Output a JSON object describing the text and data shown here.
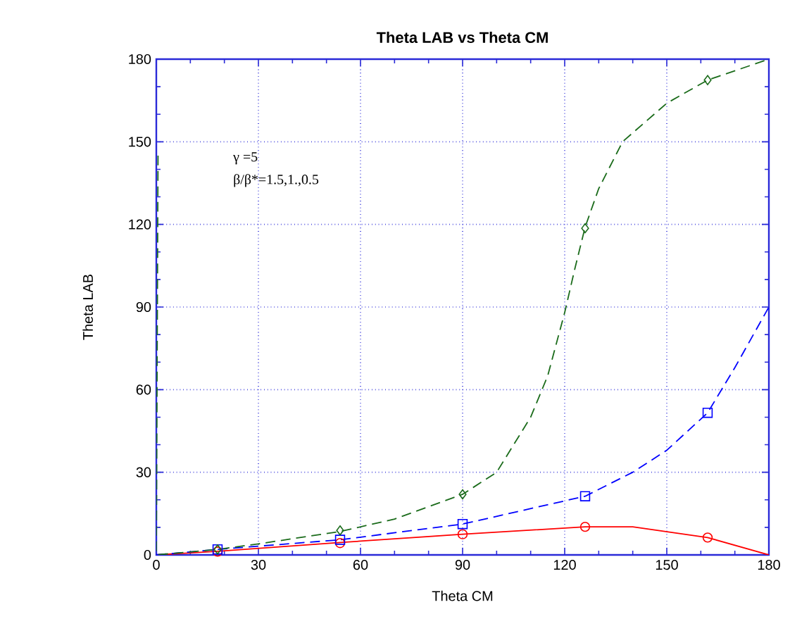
{
  "chart_data": {
    "type": "line",
    "title": "Theta LAB vs Theta CM",
    "xlabel": "Theta CM",
    "ylabel": "Theta LAB",
    "xlim": [
      0,
      180
    ],
    "ylim": [
      0,
      180
    ],
    "xticks": [
      0,
      30,
      60,
      90,
      120,
      150,
      180
    ],
    "yticks": [
      0,
      30,
      60,
      90,
      120,
      150,
      180
    ],
    "grid": true,
    "annotations": [
      "γ =5",
      "β/β*=1.5,1.,0.5"
    ],
    "series": [
      {
        "line_style": "solid",
        "color": "#ff0000",
        "x": [
          0,
          18,
          54,
          90,
          126,
          140,
          162,
          180
        ],
        "values": [
          0,
          1.3,
          4.5,
          7.5,
          10.2,
          10.2,
          6.3,
          0
        ]
      },
      {
        "line_style": "dashed",
        "color": "#0000ff",
        "x": [
          0,
          18,
          54,
          90,
          126,
          140,
          150,
          162,
          170,
          180
        ],
        "values": [
          0,
          2,
          5.5,
          11.2,
          21.3,
          30,
          38,
          51.6,
          68,
          90
        ]
      },
      {
        "line_style": "dashed",
        "color": "#1a6b1a",
        "x": [
          0.5,
          0,
          18,
          30,
          54,
          70,
          90,
          100,
          110,
          115,
          120,
          123,
          126,
          130,
          137,
          150,
          162,
          180
        ],
        "values": [
          145,
          0,
          2,
          4,
          8.5,
          13,
          22,
          30,
          50,
          65,
          88,
          104,
          119,
          133,
          150,
          164,
          172.4,
          180
        ]
      },
      {
        "type": "scatter",
        "marker": "circle",
        "color": "#ff0000",
        "x": [
          18,
          54,
          90,
          126,
          162
        ],
        "values": [
          1.2,
          4.3,
          7.5,
          10.2,
          6.3
        ]
      },
      {
        "type": "scatter",
        "marker": "square",
        "color": "#0000ff",
        "x": [
          18,
          54,
          90,
          126,
          162
        ],
        "values": [
          2,
          5.5,
          11.2,
          21.3,
          51.6
        ]
      },
      {
        "type": "scatter",
        "marker": "diamond",
        "color": "#1a6b1a",
        "x": [
          18,
          54,
          90,
          126,
          162
        ],
        "values": [
          2,
          8.9,
          22,
          118.6,
          172.4
        ]
      }
    ]
  }
}
